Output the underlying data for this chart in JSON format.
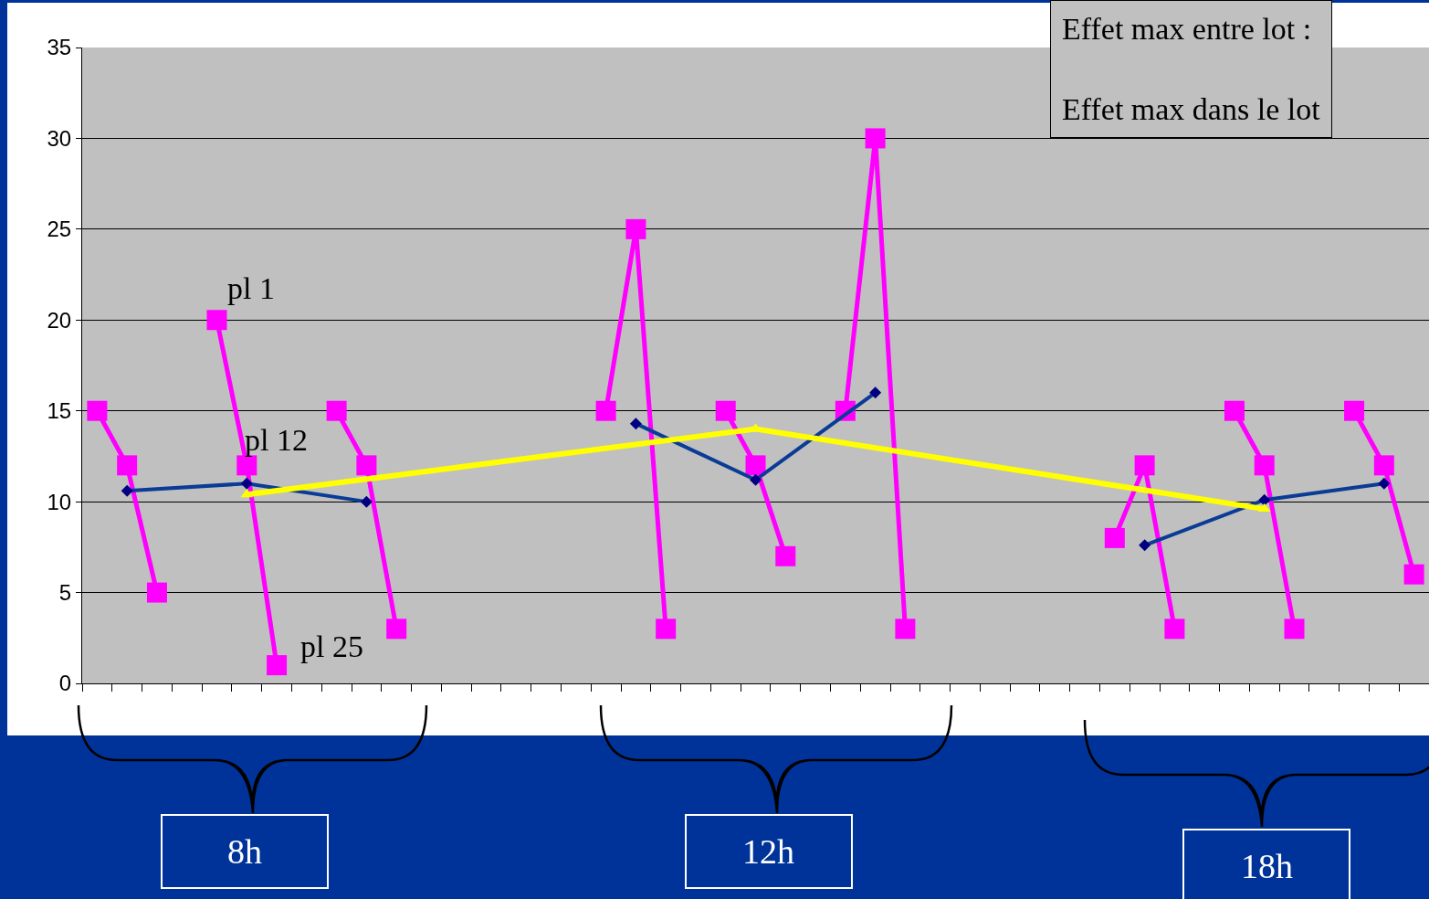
{
  "chart_data": {
    "type": "line",
    "categories": [
      null,
      null,
      null,
      null,
      null,
      null,
      null,
      null,
      null,
      null,
      null,
      null,
      null,
      null,
      null,
      null,
      null,
      null,
      null,
      null,
      null,
      null,
      null,
      null,
      null,
      null,
      null,
      null,
      null,
      null,
      null,
      null,
      null,
      null,
      null,
      null,
      null,
      null,
      null,
      null,
      null,
      null,
      null,
      null,
      null
    ],
    "ylim": [
      0,
      35
    ],
    "yticks": [
      0,
      5,
      10,
      15,
      20,
      25,
      30,
      35
    ],
    "grid": "y",
    "series": [
      {
        "color": "#ff00ff",
        "marker": "square",
        "values": [
          15,
          12,
          5,
          null,
          null,
          null,
          null,
          null,
          null,
          null,
          null,
          null,
          null,
          null,
          null,
          null,
          null,
          null,
          null,
          null,
          null,
          null,
          null,
          null,
          null,
          null,
          null,
          null,
          null,
          null,
          null,
          null,
          null,
          null,
          null,
          null,
          null,
          null,
          null,
          null,
          null,
          null,
          null,
          null,
          null
        ]
      },
      {
        "color": "#ff00ff",
        "marker": "square",
        "values": [
          null,
          null,
          null,
          null,
          20,
          12,
          1,
          null,
          null,
          null,
          null,
          null,
          null,
          null,
          null,
          null,
          null,
          null,
          null,
          null,
          null,
          null,
          null,
          null,
          null,
          null,
          null,
          null,
          null,
          null,
          null,
          null,
          null,
          null,
          null,
          null,
          null,
          null,
          null,
          null,
          null,
          null,
          null,
          null,
          null
        ]
      },
      {
        "color": "#ff00ff",
        "marker": "square",
        "values": [
          null,
          null,
          null,
          null,
          null,
          null,
          null,
          null,
          15,
          12,
          3,
          null,
          null,
          null,
          null,
          null,
          null,
          null,
          null,
          null,
          null,
          null,
          null,
          null,
          null,
          null,
          null,
          null,
          null,
          null,
          null,
          null,
          null,
          null,
          null,
          null,
          null,
          null,
          null,
          null,
          null,
          null,
          null,
          null,
          null
        ]
      },
      {
        "color": "#ff00ff",
        "marker": "square",
        "values": [
          null,
          null,
          null,
          null,
          null,
          null,
          null,
          null,
          null,
          null,
          null,
          null,
          null,
          null,
          null,
          null,
          null,
          15,
          25,
          3,
          null,
          null,
          null,
          null,
          null,
          null,
          null,
          null,
          null,
          null,
          null,
          null,
          null,
          null,
          null,
          null,
          null,
          null,
          null,
          null,
          null,
          null,
          null,
          null,
          null
        ]
      },
      {
        "color": "#ff00ff",
        "marker": "square",
        "values": [
          null,
          null,
          null,
          null,
          null,
          null,
          null,
          null,
          null,
          null,
          null,
          null,
          null,
          null,
          null,
          null,
          null,
          null,
          null,
          null,
          null,
          15,
          12,
          7,
          null,
          null,
          null,
          null,
          null,
          null,
          null,
          null,
          null,
          null,
          null,
          null,
          null,
          null,
          null,
          null,
          null,
          null,
          null,
          null,
          null
        ]
      },
      {
        "color": "#ff00ff",
        "marker": "square",
        "values": [
          null,
          null,
          null,
          null,
          null,
          null,
          null,
          null,
          null,
          null,
          null,
          null,
          null,
          null,
          null,
          null,
          null,
          null,
          null,
          null,
          null,
          null,
          null,
          null,
          null,
          15,
          30,
          3,
          null,
          null,
          null,
          null,
          null,
          null,
          null,
          null,
          null,
          null,
          null,
          null,
          null,
          null,
          null,
          null,
          null
        ]
      },
      {
        "color": "#ff00ff",
        "marker": "square",
        "values": [
          null,
          null,
          null,
          null,
          null,
          null,
          null,
          null,
          null,
          null,
          null,
          null,
          null,
          null,
          null,
          null,
          null,
          null,
          null,
          null,
          null,
          null,
          null,
          null,
          null,
          null,
          null,
          null,
          null,
          null,
          null,
          null,
          null,
          null,
          8,
          12,
          3,
          null,
          null,
          null,
          null,
          null,
          null,
          null,
          null
        ]
      },
      {
        "color": "#ff00ff",
        "marker": "square",
        "values": [
          null,
          null,
          null,
          null,
          null,
          null,
          null,
          null,
          null,
          null,
          null,
          null,
          null,
          null,
          null,
          null,
          null,
          null,
          null,
          null,
          null,
          null,
          null,
          null,
          null,
          null,
          null,
          null,
          null,
          null,
          null,
          null,
          null,
          null,
          null,
          null,
          null,
          null,
          15,
          12,
          3,
          null,
          null,
          null,
          null
        ]
      },
      {
        "color": "#ff00ff",
        "marker": "square",
        "values": [
          null,
          null,
          null,
          null,
          null,
          null,
          null,
          null,
          null,
          null,
          null,
          null,
          null,
          null,
          null,
          null,
          null,
          null,
          null,
          null,
          null,
          null,
          null,
          null,
          null,
          null,
          null,
          null,
          null,
          null,
          null,
          null,
          null,
          null,
          null,
          null,
          null,
          null,
          null,
          null,
          null,
          null,
          15,
          12,
          6
        ]
      },
      {
        "color": "#0a3c96",
        "marker": "diamond",
        "values": [
          null,
          10.6,
          null,
          null,
          null,
          11,
          null,
          null,
          null,
          10,
          null,
          null,
          null,
          null,
          null,
          null,
          null,
          null,
          null,
          null,
          null,
          null,
          null,
          null,
          null,
          null,
          null,
          null,
          null,
          null,
          null,
          null,
          null,
          null,
          null,
          null,
          null,
          null,
          null,
          null,
          null,
          null,
          null,
          null,
          null
        ]
      },
      {
        "color": "#0a3c96",
        "marker": "diamond",
        "values": [
          null,
          null,
          null,
          null,
          null,
          null,
          null,
          null,
          null,
          null,
          null,
          null,
          null,
          null,
          null,
          null,
          null,
          null,
          14.3,
          null,
          null,
          null,
          11.2,
          null,
          null,
          null,
          16,
          null,
          null,
          null,
          null,
          null,
          null,
          null,
          null,
          null,
          null,
          null,
          null,
          null,
          null,
          null,
          null,
          null,
          null
        ]
      },
      {
        "color": "#0a3c96",
        "marker": "diamond",
        "values": [
          null,
          null,
          null,
          null,
          null,
          null,
          null,
          null,
          null,
          null,
          null,
          null,
          null,
          null,
          null,
          null,
          null,
          null,
          null,
          null,
          null,
          null,
          null,
          null,
          null,
          null,
          null,
          null,
          null,
          null,
          null,
          null,
          null,
          null,
          null,
          7.6,
          null,
          null,
          null,
          10.1,
          null,
          null,
          null,
          11,
          null
        ]
      },
      {
        "color": "#ffff00",
        "marker": "triangle",
        "values": [
          null,
          null,
          null,
          null,
          null,
          10.4,
          null,
          null,
          null,
          null,
          null,
          null,
          null,
          null,
          null,
          null,
          null,
          null,
          null,
          null,
          null,
          null,
          14,
          null,
          null,
          null,
          null,
          null,
          null,
          null,
          null,
          null,
          null,
          null,
          null,
          null,
          null,
          null,
          null,
          9.6,
          null,
          null,
          null,
          null,
          null
        ]
      }
    ],
    "annotations": [
      "pl 1",
      "pl 12",
      "pl 25",
      "Effet max entre lot :",
      "Effet max dans le lot",
      "8h",
      "12h",
      "18h"
    ]
  }
}
